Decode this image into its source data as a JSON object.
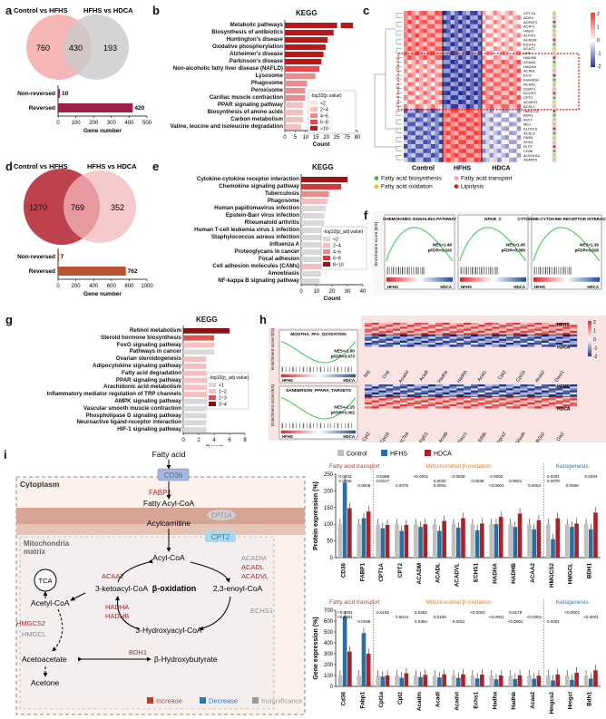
{
  "panels": {
    "a": {
      "label": "a",
      "venn": {
        "left_title": "Control vs HFHS",
        "right_title": "HFHS vs HDCA",
        "left_only": "760",
        "overlap": "430",
        "right_only": "193"
      },
      "bars": {
        "categories": [
          "Non-reversed",
          "Reversed"
        ],
        "values": [
          10,
          420
        ],
        "value_labels": [
          "10",
          "420"
        ],
        "xticks": [
          "0",
          "100",
          "200",
          "300",
          "400",
          "500"
        ],
        "xlabel": "Gene number"
      }
    },
    "b": {
      "label": "b",
      "title": "KEGG",
      "terms": [
        "Metabolic pathways",
        "Biosynthesis of antibiotics",
        "Huntington's disease",
        "Oxidative phosphorylation",
        "Alzheimer's disease",
        "Parkinson's disease",
        "Non-alcoholic fatty liver disease (NAFLD)",
        "Lysosome",
        "Phagosome",
        "Peroxisome",
        "Cardiac muscle contraction",
        "PPAR signaling pathway",
        "Biosynthesis of amino acids",
        "Carbon metabolism",
        "Valine, leucine and isoleucine degradation"
      ],
      "counts": [
        78,
        24,
        21,
        20,
        19,
        18,
        17,
        15,
        11,
        10,
        10,
        9,
        9,
        9,
        8
      ],
      "levels": [
        4,
        4,
        4,
        4,
        4,
        4,
        3,
        2,
        2,
        2,
        2,
        1,
        1,
        1,
        1
      ],
      "xticks": [
        "0",
        "5",
        "10",
        "15",
        "20",
        "25",
        "75",
        "80"
      ],
      "xlabel": "Count",
      "legend_title": "-log10(p value)",
      "legend_items": [
        "<2",
        "2~4",
        "4~6",
        "6~8",
        ">10"
      ]
    },
    "c": {
      "label": "c",
      "genes": [
        "CPT1A",
        "ADH4",
        "AGPAT2",
        "ACAT1",
        "HADH",
        "ACOX1",
        "ACADM",
        "ECHS1",
        "ACAT2",
        "LIPE",
        "HADHB",
        "ACAA2",
        "HADHA",
        "ACADL",
        "ECI2",
        "EHHADH",
        "ACAA1",
        "DGAT1",
        "ACOX3",
        "CPT2",
        "ACADVL",
        "ACSL1",
        "HMGCS2",
        "BDH1",
        "ACLY",
        "ME1",
        "ELOVL5",
        "ACSL5",
        "FASN",
        "SCD1",
        "PLTP",
        "CD36",
        "ALDH1A2",
        "AGPAT9"
      ],
      "groups": [
        "Control",
        "HFHS",
        "HDCA"
      ],
      "scale_ticks": [
        "2",
        "1",
        "0",
        "-1",
        "-2"
      ],
      "legend": [
        {
          "label": "Fatty acid biosynthesis",
          "color": "#4caf50"
        },
        {
          "label": "Fatty acid transport",
          "color": "#f4a6a0"
        },
        {
          "label": "Fatty acid oxidation",
          "color": "#f0c419"
        },
        {
          "label": "Lipolysis",
          "color": "#d62728"
        }
      ]
    },
    "d": {
      "label": "d",
      "venn": {
        "left_title": "Control vs HFHS",
        "right_title": "HFHS vs HDCA",
        "left_only": "1270",
        "overlap": "769",
        "right_only": "352"
      },
      "bars": {
        "categories": [
          "Non-reversed",
          "Reversed"
        ],
        "values": [
          7,
          762
        ],
        "value_labels": [
          "7",
          "762"
        ],
        "xticks": [
          "0",
          "200",
          "400",
          "600",
          "800",
          "1000"
        ],
        "xlabel": "Gene number"
      }
    },
    "e": {
      "label": "e",
      "title": "KEGG",
      "terms": [
        "Cytokine-cytokine receptor interaction",
        "Chemokine signaling pathway",
        "Tuberculosis",
        "Phagosome",
        "Human papillomavirus infection",
        "Epstein-Barr virus infection",
        "Rheumatoid arthritis",
        "Human T-cell leukemia virus 1 infection",
        "Staphylococcus aureus infection",
        "Influenza A",
        "Proteoglycans in cancer",
        "Focal adhesion",
        "Cell adhesion molecules (CAMs)",
        "Amoebiasis",
        "NF-kappa B signaling pathway"
      ],
      "counts": [
        30,
        26,
        18,
        17,
        16,
        15,
        15,
        15,
        14,
        14,
        14,
        14,
        13,
        13,
        12
      ],
      "levels": [
        4,
        3,
        2,
        1,
        0,
        0,
        0,
        0,
        0,
        0,
        0,
        0,
        1,
        0,
        0
      ],
      "xticks": [
        "0",
        "10",
        "20",
        "30",
        "40"
      ],
      "xlabel": "Count",
      "legend_title": "-log10(p_adj value)",
      "legend_items": [
        "<2",
        "2~4",
        "4~6",
        "6~8",
        "8~10"
      ]
    },
    "f": {
      "label": "f",
      "gsea": [
        {
          "title": "CHEMOKINES SIGNALING PATHWAY",
          "nes": "NES=1.48",
          "fdr": "pFDR=0.026",
          "left": "HFHS",
          "right": "HDCA"
        },
        {
          "title": "NFKB_C",
          "nes": "NES=1.45",
          "fdr": "pFDR=0.380",
          "left": "HFHS",
          "right": "HDCA"
        },
        {
          "title": "CYTOKINE-CYTOKINE RECEPTOR INTERACTION",
          "nes": "NES=1.39",
          "fdr": "pFDR=0.026",
          "left": "HFHS",
          "right": "HDCA"
        }
      ],
      "ylabel": "Enrichment score (ES)"
    },
    "g": {
      "label": "g",
      "title": "KEGG",
      "terms": [
        "Retinol metabolism",
        "Steroid hormone biosynthesis",
        "FoxO signaling pathway",
        "Pathways in cancer",
        "Ovarian steroidogenesis",
        "Adipocytokine signaling pathway",
        "Fatty acid degradation",
        "PPAR signaling pathway",
        "Arachidonic acid metabolism",
        "Inflammatory mediator regulation of TRP channels",
        "AMPK signaling pathway",
        "Vascular smooth muscle contraction",
        "Phospholipase D signaling pathway",
        "Neuroactive ligand-receptor interaction",
        "HIF-1 signaling pathway"
      ],
      "counts": [
        6,
        4,
        4,
        4,
        3,
        3,
        3,
        3,
        3,
        3,
        3,
        3,
        3,
        3,
        3
      ],
      "levels": [
        3,
        2,
        1,
        0,
        1,
        1,
        1,
        1,
        1,
        1,
        0,
        0,
        0,
        0,
        0
      ],
      "xticks": [
        "0",
        "2",
        "4",
        "6",
        "8"
      ],
      "xlabel": "Count",
      "legend_title": "-log10(p_adj value)",
      "legend_items": [
        "<1",
        "1~2",
        "2~3",
        "3~4"
      ]
    },
    "h": {
      "label": "h",
      "gsea": [
        {
          "title": "MOOTHA_FFA_OXYDATION",
          "nes": "NES=-1.80",
          "fdr": "pFDR=0.073",
          "left": "HFHS",
          "right": "HDCA"
        },
        {
          "title": "SANDERSON_PPARA_TARGETS",
          "nes": "NES=-2.25",
          "fdr": "pFDR=0.002",
          "left": "HFHS",
          "right": "HDCA"
        }
      ],
      "ylabel": "Enrichment score (ES)",
      "heat1_genes": [
        "Nnt",
        "Crat",
        "Acadvl",
        "Acadl",
        "Hadha",
        "Hadhb",
        "Acat1",
        "Cpt2",
        "Cpt1b",
        "Acaa2",
        "Decr1"
      ],
      "heat2_genes": [
        "Cpt2",
        "Cpt1b",
        "Hsd17b4",
        "Fgf21",
        "Acot8",
        "Decr1",
        "Etfdh",
        "Hmgcs2",
        "Ehhadh",
        "Aldh3a2",
        "Gls2"
      ],
      "row_labels": [
        "HFHS",
        "HDCA"
      ],
      "scale_ticks": [
        "2",
        "1",
        "0",
        "-1",
        "-2"
      ]
    },
    "i": {
      "label": "i",
      "diagram": {
        "fatty_acid": "Fatty acid",
        "cd36": "CD36",
        "cytoplasm": "Cytoplasm",
        "fabp1": "FABP1",
        "fatty_acyl_coa": "Fatty Acyl-CoA",
        "cpt1a": "CPT1A",
        "acylcarnitine": "Acylcarnitine",
        "cpt2": "CPT2",
        "mito": "Mitochondria\nmatrix",
        "tca": "TCA",
        "acyl_coa": "Acyl-CoA",
        "acadm": "ACADM",
        "acadl": "ACADL",
        "acadvl": "ACADVL",
        "acaa2": "ACAA2",
        "ketoacyl": "3-ketoacyl-CoA",
        "beta_ox": "β-oxidation",
        "enoyl": "2,3-enoyl-CoA",
        "echs1": "ECHS1",
        "acetyl": "Acetyl-CoA",
        "hmgcs2": "HMGCS2",
        "hmgcl": "HMGCL",
        "hadha": "HADHA",
        "hadhb": "HADHB",
        "hydroxyacyl": "3-Hydroxyacyl-CoA",
        "acetoacetate": "Acetoacetate",
        "bdh1": "BDH1",
        "hydroxybutyrate": "β-Hydroxybutyrate",
        "acetone": "Acetone",
        "legend": [
          {
            "label": "Increase",
            "color": "#c0392b"
          },
          {
            "label": "Decrease",
            "color": "#2e75b6"
          },
          {
            "label": "Insignificance",
            "color": "#999999"
          }
        ]
      },
      "legend_groups": [
        {
          "label": "Control",
          "color": "#bfbfbf"
        },
        {
          "label": "HFHS",
          "color": "#2e6e9e"
        },
        {
          "label": "HDCA",
          "color": "#a5232b"
        }
      ],
      "protein_chart": {
        "ylabel": "Protein expression (%)",
        "section_labels": [
          "Fatty acid transport",
          "Mitochondrial  β-oxidation",
          "Ketogenesis"
        ],
        "categories": [
          "CD36",
          "FABP1",
          "CPT1A",
          "CPT2",
          "ACADM",
          "ACADL",
          "ACADVL",
          "ECHS1",
          "HADHA",
          "HADHB",
          "ACAA2",
          "HMGCS2",
          "HMGCL",
          "BDH1"
        ],
        "series": [
          {
            "name": "Control",
            "values": [
              100,
              100,
              100,
              100,
              100,
              100,
              100,
              100,
              100,
              100,
              100,
              100,
              100,
              100
            ]
          },
          {
            "name": "HFHS",
            "values": [
              225,
              118,
              88,
              80,
              92,
              80,
              90,
              82,
              100,
              92,
              85,
              55,
              92,
              85
            ]
          },
          {
            "name": "HDCA",
            "values": [
              148,
              138,
              98,
              98,
              100,
              110,
              118,
              102,
              122,
              132,
              112,
              118,
              102,
              135
            ]
          }
        ],
        "yticks": [
          "0",
          "50",
          "100",
          "150",
          "200",
          "250"
        ],
        "pvals": [
          "0.0003",
          "0.0056",
          "0.0006",
          "0.0386",
          "0.0217",
          "0.0375",
          "<0.0001",
          "0.0032",
          "0.0004",
          "0.0028",
          "0.0038",
          "<0.0001",
          "0.0002",
          "0.0001",
          "0.0004",
          "0.0001",
          "0.0079",
          "0.0006",
          "0.0404"
        ]
      },
      "gene_chart": {
        "ylabel": "Gene expression (%)",
        "section_labels": [
          "Fatty acid transport",
          "Mitochondrial  β-oxidation",
          "Ketogenesis"
        ],
        "categories": [
          "Cd36",
          "Fabp1",
          "Cpt1a",
          "Cpt2",
          "Acadm",
          "Acadl",
          "Acadvl",
          "Echs1",
          "Hadha",
          "Hadhb",
          "Acaa2",
          "Hmgcs2",
          "Hmgcl",
          "Bdh1"
        ],
        "series": [
          {
            "name": "Control",
            "values": [
              100,
              100,
              100,
              100,
              100,
              100,
              100,
              100,
              100,
              100,
              100,
              100,
              100,
              100
            ]
          },
          {
            "name": "HFHS",
            "values": [
              640,
              490,
              90,
              80,
              85,
              82,
              78,
              72,
              65,
              68,
              70,
              55,
              60,
              72
            ]
          },
          {
            "name": "HDCA",
            "values": [
              320,
              300,
              100,
              120,
              105,
              110,
              110,
              108,
              100,
              102,
              98,
              110,
              125,
              148
            ]
          }
        ],
        "yticks": [
          "0",
          "100",
          "200",
          "300",
          "400",
          "500",
          "600",
          "700"
        ],
        "pvals": [
          "<0.0001",
          "<0.0001",
          "0.0159",
          "0.0182",
          "0.0014",
          "0.0354",
          "0.0252",
          "0.0108",
          "0.0011",
          "<0.0001",
          "<0.0001",
          "<0.0001",
          "0.0179",
          "<0.0001",
          "0.0001",
          "<0.0001",
          "<0.0001"
        ]
      }
    }
  }
}
